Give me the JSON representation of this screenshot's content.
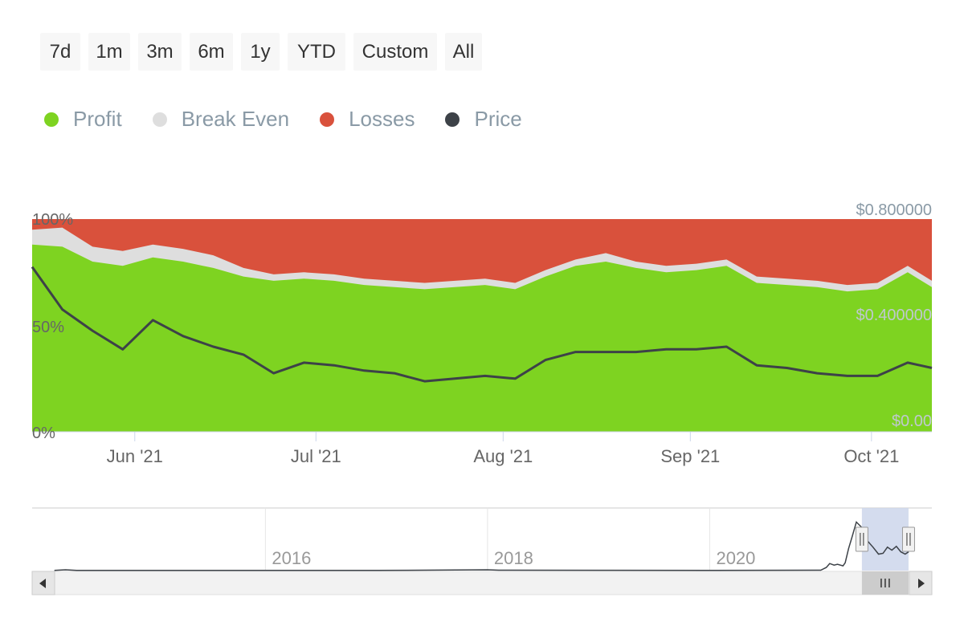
{
  "range_buttons": [
    "7d",
    "1m",
    "3m",
    "6m",
    "1y",
    "YTD",
    "Custom",
    "All"
  ],
  "legend": [
    {
      "label": "Profit",
      "color": "#7ed321"
    },
    {
      "label": "Break Even",
      "color": "#dedede"
    },
    {
      "label": "Losses",
      "color": "#d9513c"
    },
    {
      "label": "Price",
      "color": "#3d4248"
    }
  ],
  "chart_data": {
    "type": "area",
    "x": [
      "2021-05-15",
      "2021-05-20",
      "2021-05-25",
      "2021-05-30",
      "2021-06-04",
      "2021-06-09",
      "2021-06-14",
      "2021-06-19",
      "2021-06-24",
      "2021-06-29",
      "2021-07-04",
      "2021-07-09",
      "2021-07-14",
      "2021-07-19",
      "2021-07-24",
      "2021-07-29",
      "2021-08-03",
      "2021-08-08",
      "2021-08-13",
      "2021-08-18",
      "2021-08-23",
      "2021-08-28",
      "2021-09-02",
      "2021-09-07",
      "2021-09-12",
      "2021-09-17",
      "2021-09-22",
      "2021-09-27",
      "2021-10-02",
      "2021-10-07",
      "2021-10-11"
    ],
    "series": [
      {
        "name": "Profit",
        "stack": "percent",
        "values": [
          88,
          87,
          80,
          78,
          82,
          80,
          77,
          73,
          71,
          72,
          71,
          69,
          68,
          67,
          68,
          69,
          67,
          73,
          78,
          80,
          77,
          75,
          76,
          78,
          70,
          69,
          68,
          66,
          67,
          75,
          68
        ]
      },
      {
        "name": "Break Even",
        "stack": "percent",
        "values": [
          7,
          9,
          7,
          7,
          6,
          6,
          6,
          4,
          3,
          3,
          3,
          3,
          3,
          3,
          3,
          3,
          3,
          3,
          3,
          4,
          3,
          3,
          3,
          3,
          3,
          3,
          3,
          3,
          3,
          3,
          3
        ]
      },
      {
        "name": "Losses",
        "stack": "percent",
        "values": [
          5,
          4,
          13,
          15,
          12,
          14,
          17,
          23,
          26,
          25,
          26,
          28,
          29,
          30,
          29,
          28,
          30,
          24,
          19,
          16,
          20,
          22,
          21,
          19,
          27,
          28,
          29,
          31,
          30,
          22,
          29
        ]
      },
      {
        "name": "Price",
        "axis": "right",
        "values": [
          0.62,
          0.46,
          0.38,
          0.31,
          0.42,
          0.36,
          0.32,
          0.29,
          0.22,
          0.26,
          0.25,
          0.23,
          0.22,
          0.19,
          0.2,
          0.21,
          0.2,
          0.27,
          0.3,
          0.3,
          0.3,
          0.31,
          0.31,
          0.32,
          0.25,
          0.24,
          0.22,
          0.21,
          0.21,
          0.26,
          0.24
        ]
      }
    ],
    "x_ticks": [
      {
        "label": "Jun '21",
        "date": "2021-06-01"
      },
      {
        "label": "Jul '21",
        "date": "2021-07-01"
      },
      {
        "label": "Aug '21",
        "date": "2021-08-01"
      },
      {
        "label": "Sep '21",
        "date": "2021-09-01"
      },
      {
        "label": "Oct '21",
        "date": "2021-10-01"
      }
    ],
    "y_left_ticks": [
      "100%",
      "50%",
      "0%"
    ],
    "y_right_ticks": [
      "$0.800000",
      "$0.400000",
      "$0.00"
    ],
    "y_left_range": [
      0,
      100
    ],
    "y_right_range": [
      0,
      0.8
    ],
    "navigator": {
      "year_labels": [
        "2016",
        "2018",
        "2020"
      ],
      "year_ticks": [
        2016,
        2018,
        2020
      ],
      "x_range": [
        2013.9,
        2022.0
      ],
      "selection": [
        2021.37,
        2021.79
      ],
      "price_line": [
        [
          2014.1,
          0.003
        ],
        [
          2014.2,
          0.01
        ],
        [
          2014.3,
          0.003
        ],
        [
          2017.0,
          0.002
        ],
        [
          2018.0,
          0.01
        ],
        [
          2018.1,
          0.005
        ],
        [
          2019.0,
          0.004
        ],
        [
          2020.0,
          0.003
        ],
        [
          2021.0,
          0.005
        ],
        [
          2021.05,
          0.04
        ],
        [
          2021.08,
          0.09
        ],
        [
          2021.12,
          0.07
        ],
        [
          2021.15,
          0.08
        ],
        [
          2021.2,
          0.06
        ],
        [
          2021.22,
          0.1
        ],
        [
          2021.25,
          0.28
        ],
        [
          2021.28,
          0.42
        ],
        [
          2021.32,
          0.62
        ],
        [
          2021.37,
          0.55
        ],
        [
          2021.42,
          0.38
        ],
        [
          2021.47,
          0.3
        ],
        [
          2021.52,
          0.21
        ],
        [
          2021.56,
          0.22
        ],
        [
          2021.6,
          0.3
        ],
        [
          2021.64,
          0.26
        ],
        [
          2021.68,
          0.31
        ],
        [
          2021.72,
          0.24
        ],
        [
          2021.76,
          0.21
        ],
        [
          2021.79,
          0.24
        ]
      ]
    }
  }
}
